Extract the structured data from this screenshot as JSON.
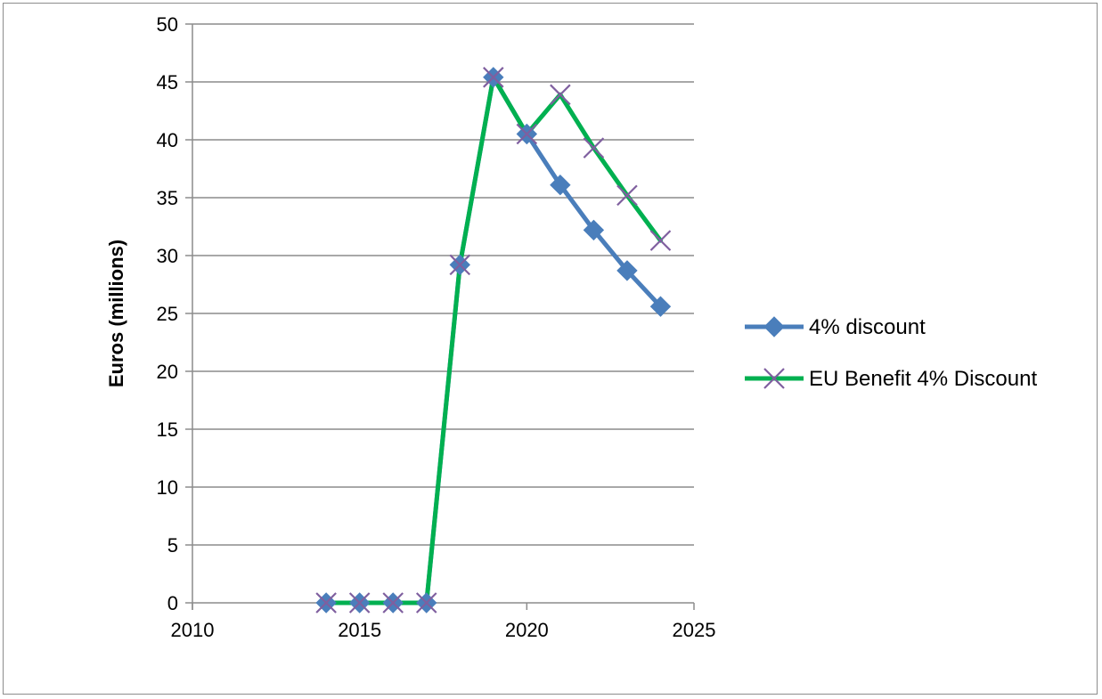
{
  "chart_data": {
    "type": "scatter",
    "title": "",
    "xlabel": "",
    "ylabel": "Euros (millions)",
    "xlim": [
      2010,
      2025
    ],
    "ylim": [
      0,
      50
    ],
    "xticks": [
      2010,
      2015,
      2020,
      2025
    ],
    "yticks": [
      0,
      5,
      10,
      15,
      20,
      25,
      30,
      35,
      40,
      45,
      50
    ],
    "grid": "horizontal",
    "legend_position": "right",
    "series": [
      {
        "name": "4% discount",
        "color": "#4a7ebb",
        "marker": "diamond",
        "x": [
          2014,
          2015,
          2016,
          2017,
          2018,
          2019,
          2020,
          2021,
          2022,
          2023,
          2024
        ],
        "y": [
          0,
          0,
          0,
          0,
          29.2,
          45.4,
          40.5,
          36.1,
          32.2,
          28.7,
          25.6
        ]
      },
      {
        "name": "EU Benefit 4% Discount",
        "color": "#00b050",
        "marker": "x",
        "marker_color": "#7f5f9f",
        "x": [
          2014,
          2015,
          2016,
          2017,
          2018,
          2019,
          2020,
          2021,
          2022,
          2023,
          2024
        ],
        "y": [
          0,
          0,
          0,
          0,
          29.2,
          45.4,
          40.5,
          43.9,
          39.3,
          35.2,
          31.3
        ]
      }
    ]
  }
}
